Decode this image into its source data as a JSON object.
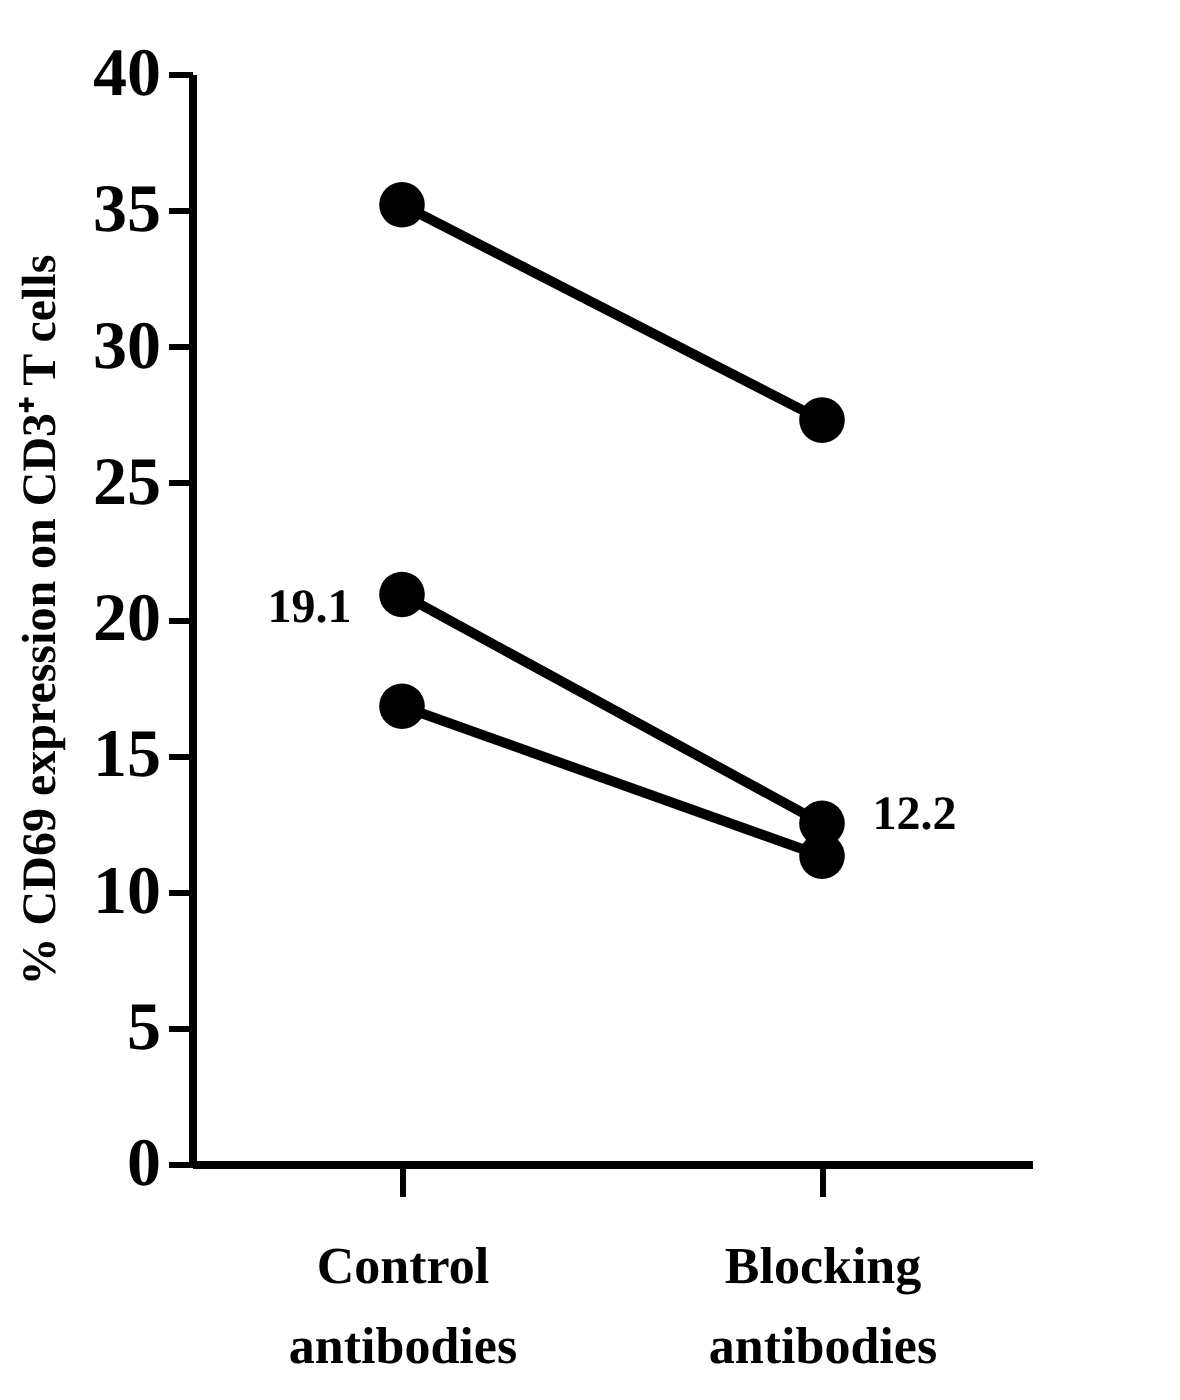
{
  "chart_data": {
    "type": "line",
    "ylabel": "% CD69 expression on CD3⁺ T cells",
    "categories": [
      "Control antibodies",
      "Blocking antibodies"
    ],
    "series": [
      {
        "color": "#000000",
        "values": [
          35.2,
          27.3
        ]
      },
      {
        "color": "#000000",
        "values": [
          20.9,
          12.5
        ]
      },
      {
        "color": "#000000",
        "values": [
          16.8,
          11.3
        ]
      }
    ],
    "ylim": [
      0,
      40
    ],
    "yticks": [
      0,
      5,
      10,
      15,
      20,
      25,
      30,
      35,
      40
    ],
    "annotations": [
      "19.1",
      "12.2"
    ],
    "marker": "circle",
    "line_style": "solid",
    "grid": false
  }
}
